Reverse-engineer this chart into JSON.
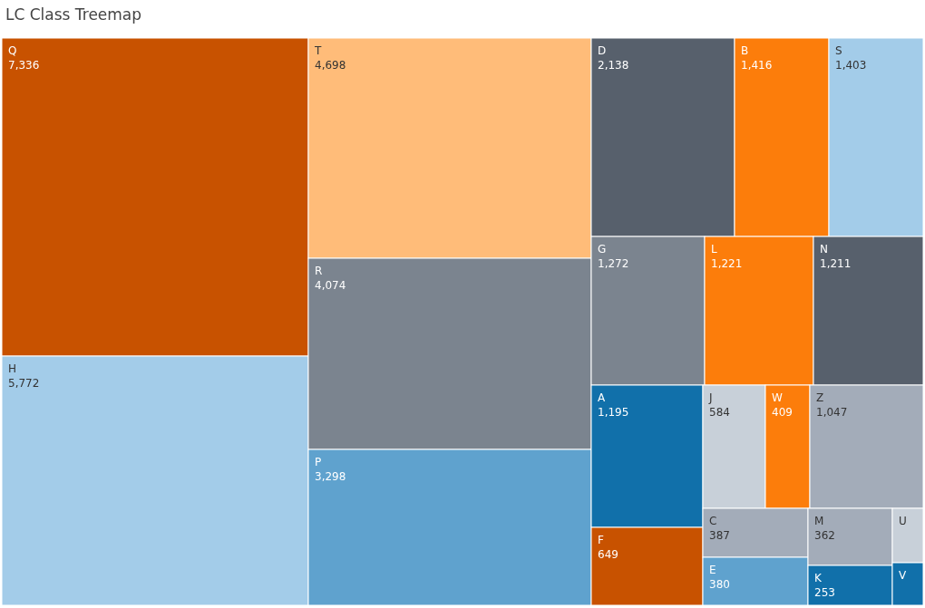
{
  "chart_data": {
    "type": "other",
    "title": "LC Class Treemap",
    "categories": [
      "Q",
      "H",
      "T",
      "R",
      "P",
      "D",
      "B",
      "S",
      "G",
      "L",
      "N",
      "A",
      "F",
      "J",
      "W",
      "Z",
      "C",
      "E",
      "M",
      "K",
      "U",
      "V"
    ],
    "values": [
      7336,
      5772,
      4698,
      4074,
      3298,
      2138,
      1416,
      1403,
      1272,
      1221,
      1211,
      1195,
      649,
      584,
      409,
      1047,
      387,
      380,
      362,
      253,
      null,
      null
    ],
    "value_labels": [
      "7,336",
      "5,772",
      "4,698",
      "4,074",
      "3,298",
      "2,138",
      "1,416",
      "1,403",
      "1,272",
      "1,221",
      "1,211",
      "1,195",
      "649",
      "584",
      "409",
      "1,047",
      "387",
      "380",
      "362",
      "253",
      null,
      null
    ],
    "colors": [
      "#c85200",
      "#a3cce9",
      "#ffbc79",
      "#7b848f",
      "#5fa2ce",
      "#57606c",
      "#fc7d0b",
      "#a3cce9",
      "#7b848f",
      "#fc7d0b",
      "#57606c",
      "#1170aa",
      "#c85200",
      "#c8d0d9",
      "#fc7d0b",
      "#a3acb9",
      "#a3acb9",
      "#5fa2ce",
      "#a3acb9",
      "#1170aa",
      "#c8d0d9",
      "#1170aa"
    ]
  }
}
